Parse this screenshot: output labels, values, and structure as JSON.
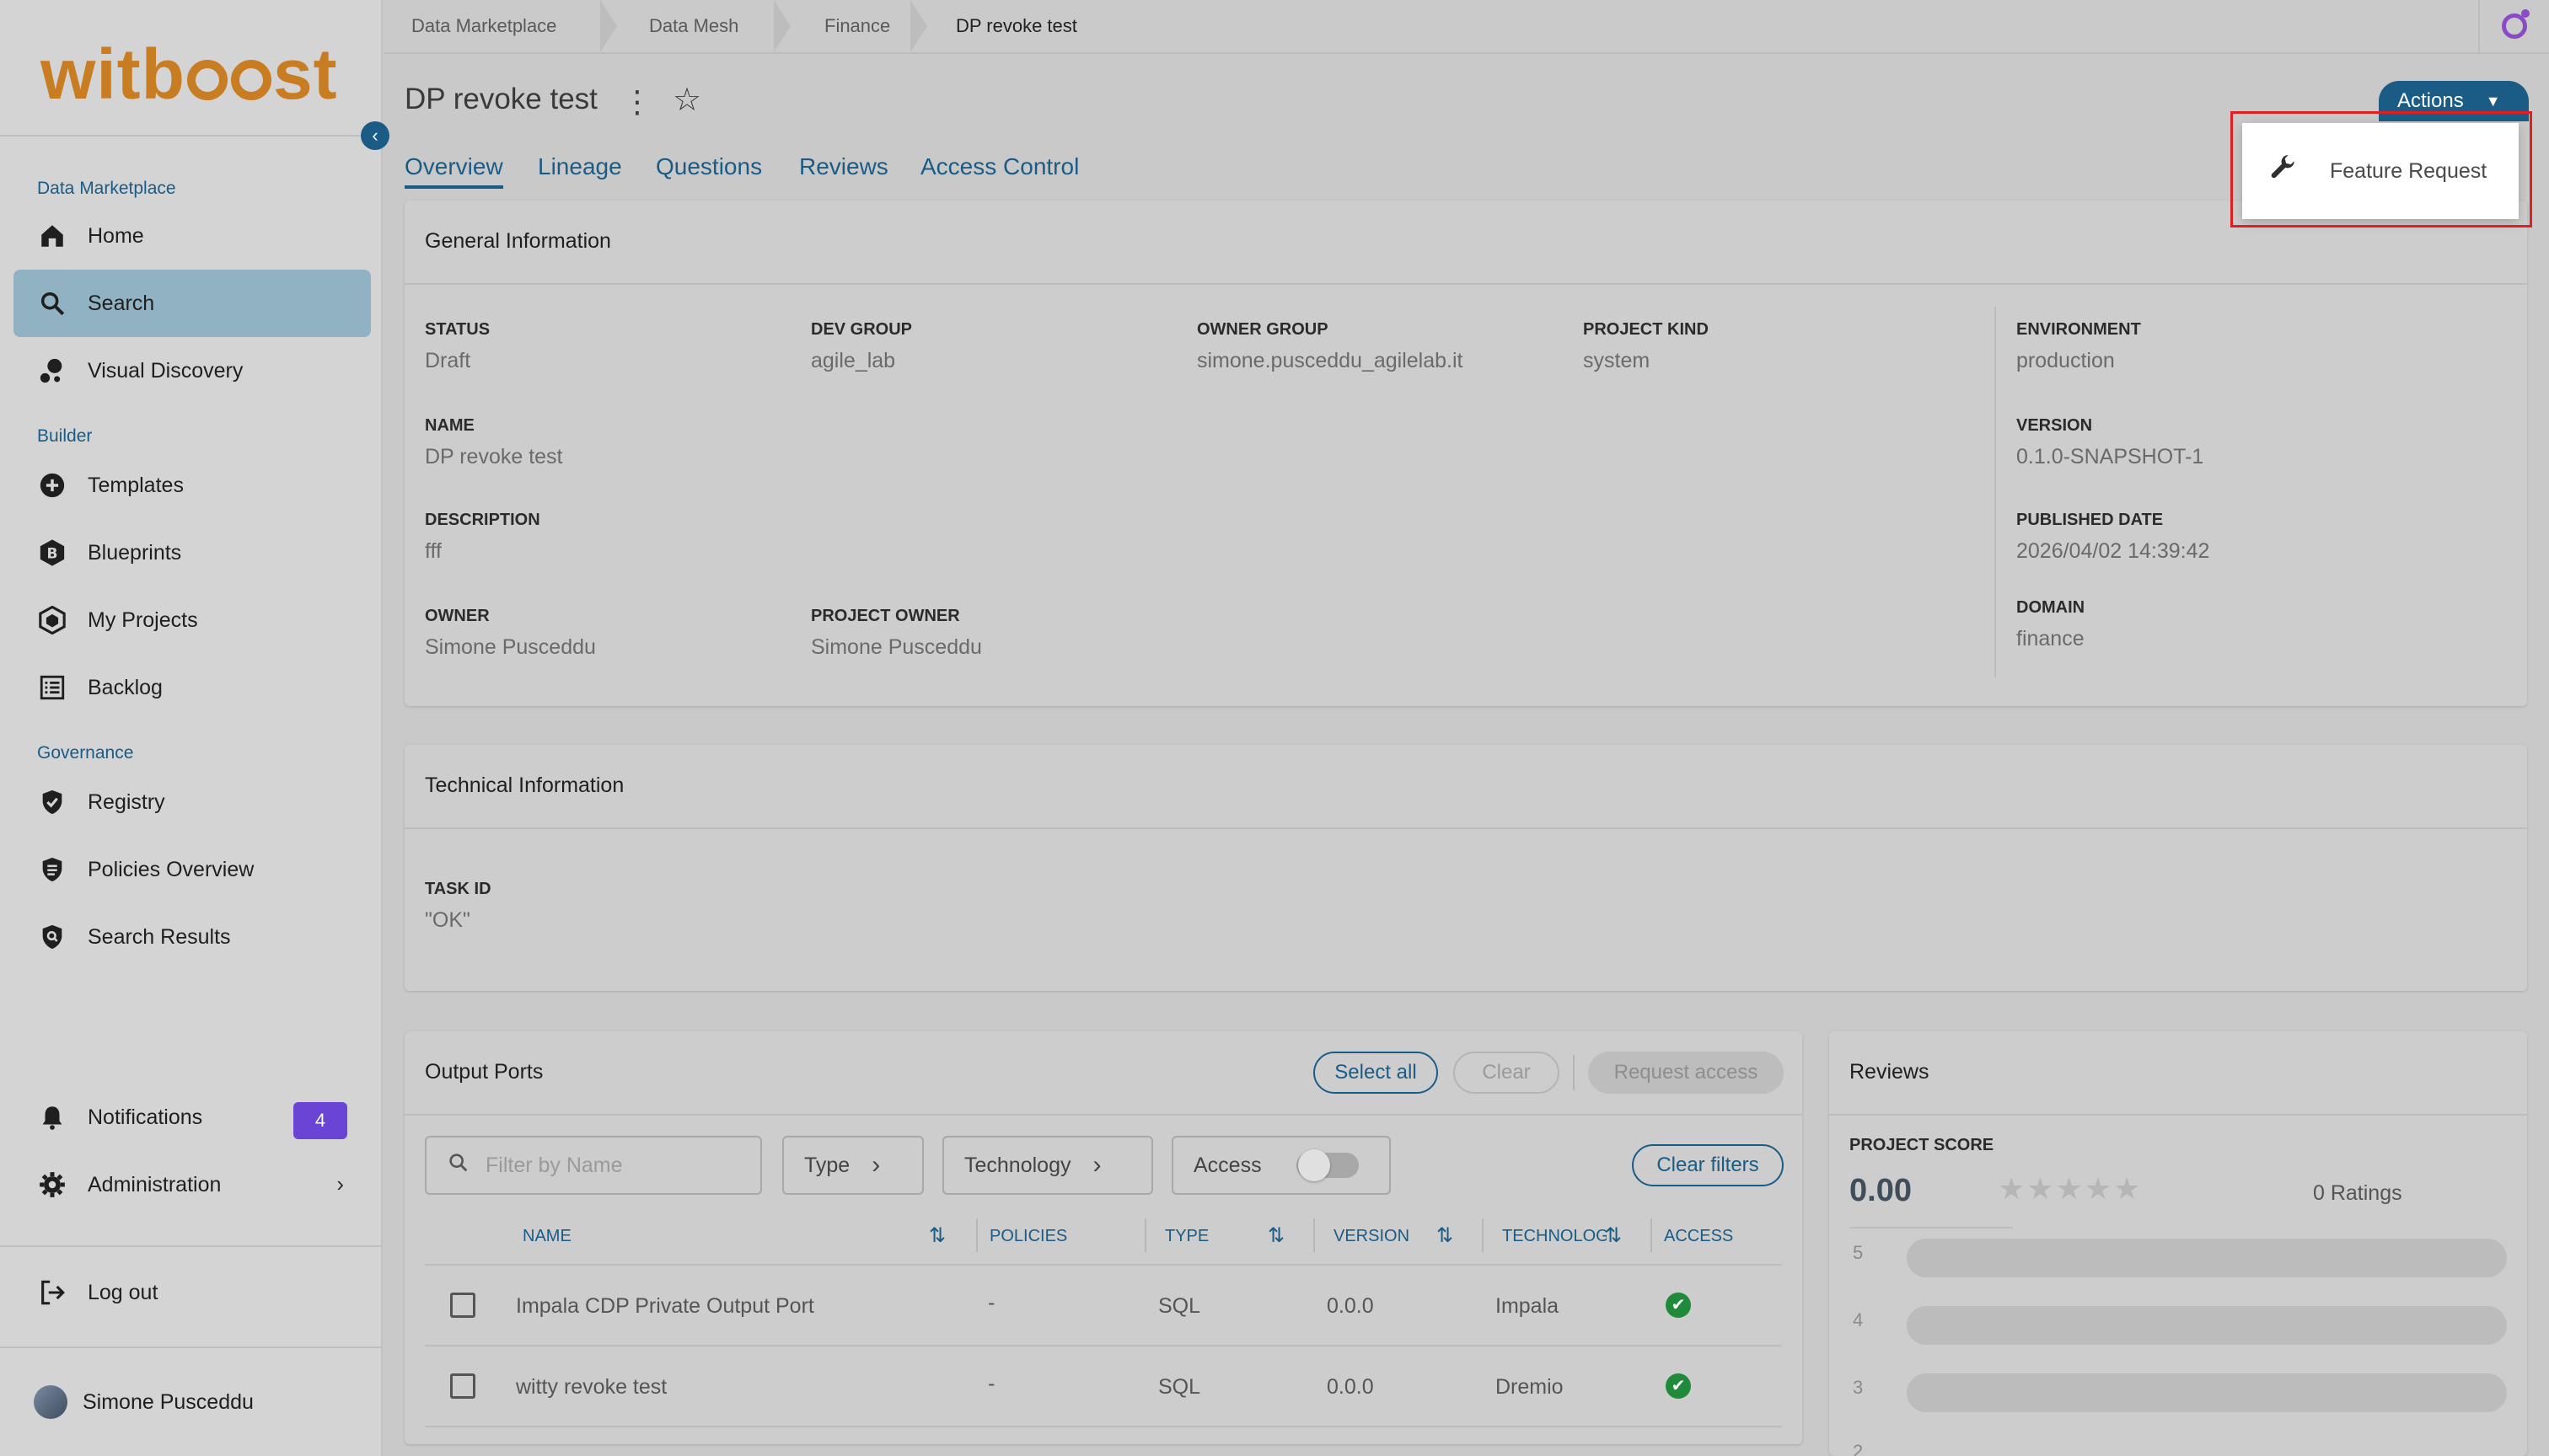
{
  "sidebar": {
    "logo": "witboost",
    "sections": {
      "marketplace": "Data Marketplace",
      "builder": "Builder",
      "governance": "Governance"
    },
    "items": {
      "home": "Home",
      "search": "Search",
      "visual_discovery": "Visual Discovery",
      "templates": "Templates",
      "blueprints": "Blueprints",
      "my_projects": "My Projects",
      "backlog": "Backlog",
      "registry": "Registry",
      "policies_overview": "Policies Overview",
      "search_results": "Search Results",
      "notifications": "Notifications",
      "administration": "Administration",
      "logout": "Log out",
      "user": "Simone Pusceddu"
    },
    "notifications_count": "4"
  },
  "breadcrumb": [
    "Data Marketplace",
    "Data Mesh",
    "Finance",
    "DP revoke test"
  ],
  "header": {
    "title": "DP revoke test",
    "actions_label": "Actions"
  },
  "tabs": [
    "Overview",
    "Lineage",
    "Questions",
    "Reviews",
    "Access Control"
  ],
  "dropdown": {
    "feature_request": "Feature Request"
  },
  "general": {
    "title": "General Information",
    "status_label": "STATUS",
    "status": "Draft",
    "dev_group_label": "DEV GROUP",
    "dev_group": "agile_lab",
    "owner_group_label": "OWNER GROUP",
    "owner_group": "simone.pusceddu_agilelab.it",
    "project_kind_label": "PROJECT KIND",
    "project_kind": "system",
    "environment_label": "ENVIRONMENT",
    "environment": "production",
    "name_label": "NAME",
    "name": "DP revoke test",
    "version_label": "VERSION",
    "version": "0.1.0-SNAPSHOT-1",
    "description_label": "DESCRIPTION",
    "description": "fff",
    "published_label": "PUBLISHED DATE",
    "published": "2026/04/02 14:39:42",
    "owner_label": "OWNER",
    "owner": "Simone Pusceddu",
    "project_owner_label": "PROJECT OWNER",
    "project_owner": "Simone Pusceddu",
    "domain_label": "DOMAIN",
    "domain": "finance"
  },
  "technical": {
    "title": "Technical Information",
    "task_id_label": "TASK ID",
    "task_id": "\"OK\""
  },
  "output_ports": {
    "title": "Output Ports",
    "select_all": "Select all",
    "clear": "Clear",
    "request_access": "Request access",
    "filter_placeholder": "Filter by Name",
    "type_filter": "Type",
    "technology_filter": "Technology",
    "access_filter": "Access",
    "clear_filters": "Clear filters",
    "columns": [
      "NAME",
      "POLICIES",
      "TYPE",
      "VERSION",
      "TECHNOLOG",
      "ACCESS"
    ],
    "rows": [
      {
        "name": "Impala CDP Private Output Port",
        "policies": "-",
        "type": "SQL",
        "version": "0.0.0",
        "technology": "Impala"
      },
      {
        "name": "witty revoke test",
        "policies": "-",
        "type": "SQL",
        "version": "0.0.0",
        "technology": "Dremio"
      }
    ]
  },
  "reviews": {
    "title": "Reviews",
    "score_label": "PROJECT SCORE",
    "score": "0.00",
    "ratings": "0 Ratings",
    "rating_levels": [
      "5",
      "4",
      "3",
      "2"
    ],
    "rating_fill_fraction": 0
  }
}
